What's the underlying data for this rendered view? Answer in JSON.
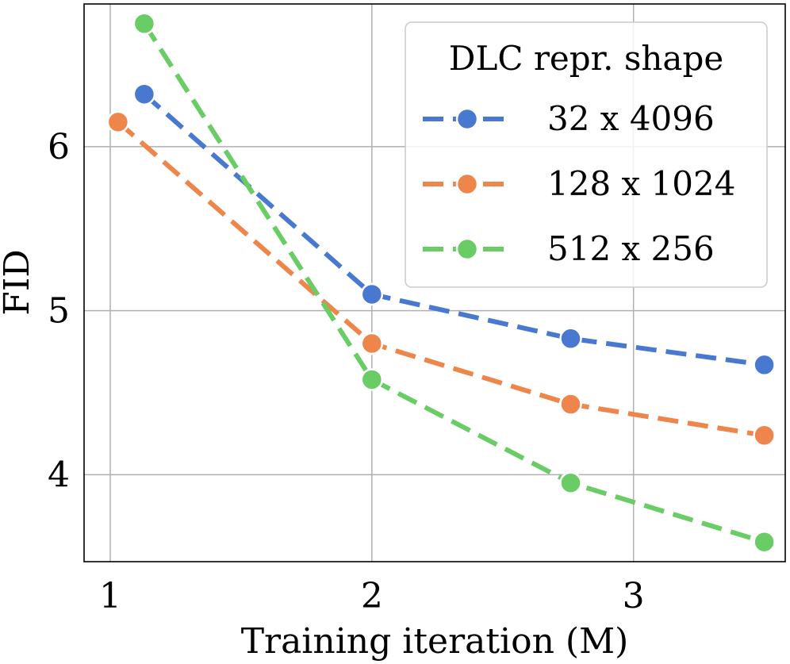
{
  "chart_data": {
    "type": "line",
    "title": "",
    "xlabel": "Training iteration (M)",
    "ylabel": "FID",
    "xlim": [
      0.9,
      3.58
    ],
    "ylim": [
      3.47,
      6.87
    ],
    "xticks": [
      1,
      2,
      3
    ],
    "xtick_labels": [
      "1",
      "2",
      "3"
    ],
    "yticks": [
      4,
      5,
      6
    ],
    "ytick_labels": [
      "4",
      "5",
      "6"
    ],
    "grid": true,
    "legend": {
      "title": "DLC repr. shape",
      "placement": "top-right"
    },
    "series": [
      {
        "name": "32 x 4096",
        "color": "#4878d0",
        "x": [
          1.13,
          2.0,
          2.76,
          3.5
        ],
        "y": [
          6.32,
          5.1,
          4.83,
          4.67
        ]
      },
      {
        "name": "128 x 1024",
        "color": "#ee854a",
        "x": [
          1.03,
          2.0,
          2.76,
          3.5
        ],
        "y": [
          6.15,
          4.8,
          4.43,
          4.24
        ]
      },
      {
        "name": "512 x 256",
        "color": "#6acc64",
        "x": [
          1.13,
          2.0,
          2.76,
          3.5
        ],
        "y": [
          6.75,
          4.58,
          3.95,
          3.59
        ]
      }
    ]
  }
}
